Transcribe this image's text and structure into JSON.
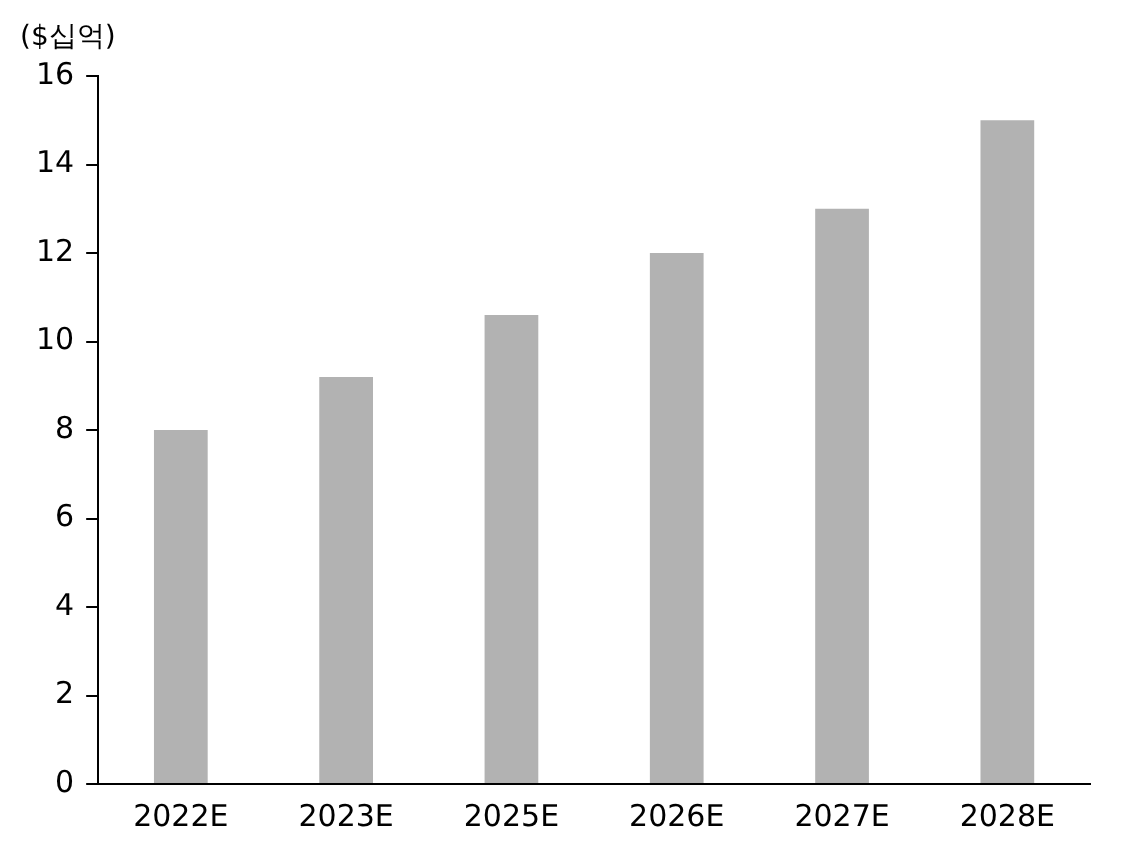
{
  "chart_data": {
    "type": "bar",
    "ylabel": "($십억)",
    "categories": [
      "2022E",
      "2023E",
      "2025E",
      "2026E",
      "2027E",
      "2028E"
    ],
    "values": [
      8,
      9.2,
      10.6,
      12,
      13,
      15
    ],
    "color": "#b2b2b2",
    "ylim": [
      0,
      16
    ],
    "yticks": [
      0,
      2,
      4,
      6,
      8,
      10,
      12,
      14,
      16
    ],
    "grid": false,
    "legend": false
  }
}
